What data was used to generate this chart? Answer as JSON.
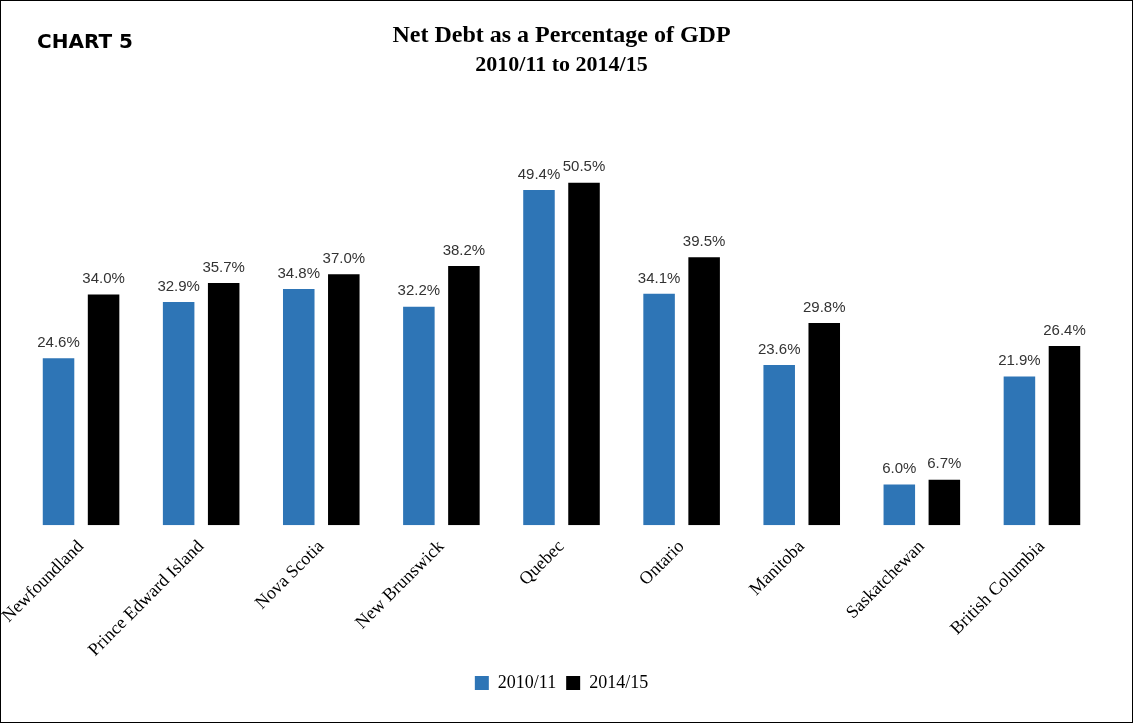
{
  "chart_data": {
    "type": "bar",
    "title": "Net Debt as a Percentage of GDP",
    "subtitle": "2010/11 to 2014/15",
    "annotations": [
      "CHART 5"
    ],
    "categories": [
      "Newfoundland",
      "Prince Edward Island",
      "Nova Scotia",
      "New Brunswick",
      "Quebec",
      "Ontario",
      "Manitoba",
      "Saskatchewan",
      "British Columbia"
    ],
    "series": [
      {
        "name": "2010/11",
        "color": "#2e75b6",
        "values": [
          24.6,
          32.9,
          34.8,
          32.2,
          49.4,
          34.1,
          23.6,
          6.0,
          21.9
        ],
        "value_labels": [
          "24.6%",
          "32.9%",
          "34.8%",
          "32.2%",
          "49.4%",
          "34.1%",
          "23.6%",
          "6.0%",
          "21.9%"
        ]
      },
      {
        "name": "2014/15",
        "color": "#000000",
        "values": [
          34.0,
          35.7,
          37.0,
          38.2,
          50.5,
          39.5,
          29.8,
          6.7,
          26.4
        ],
        "value_labels": [
          "34.0%",
          "35.7%",
          "37.0%",
          "38.2%",
          "50.5%",
          "39.5%",
          "29.8%",
          "6.7%",
          "26.4%"
        ]
      }
    ],
    "legend": "bottom",
    "grid": false
  }
}
